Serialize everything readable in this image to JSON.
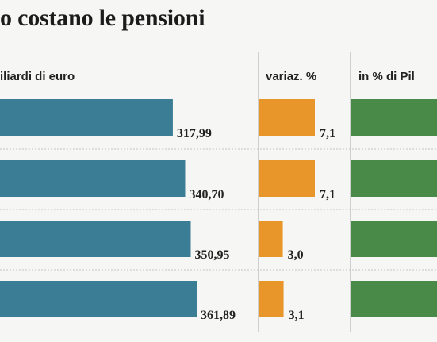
{
  "title": "o costano le pensioni",
  "chart_data": {
    "type": "bar",
    "categories": [
      "",
      "",
      "",
      ""
    ],
    "columns": [
      {
        "header": "iliardi di euro",
        "color": "#3a7d94",
        "values": [
          "317,99",
          "340,70",
          "350,95",
          "361,89"
        ]
      },
      {
        "header": "variaz. %",
        "color": "#e8962a",
        "values": [
          "7,1",
          "7,1",
          "3,0",
          "3,1"
        ]
      },
      {
        "header": "in % di Pil",
        "color": "#4a8a48",
        "values": []
      }
    ]
  }
}
